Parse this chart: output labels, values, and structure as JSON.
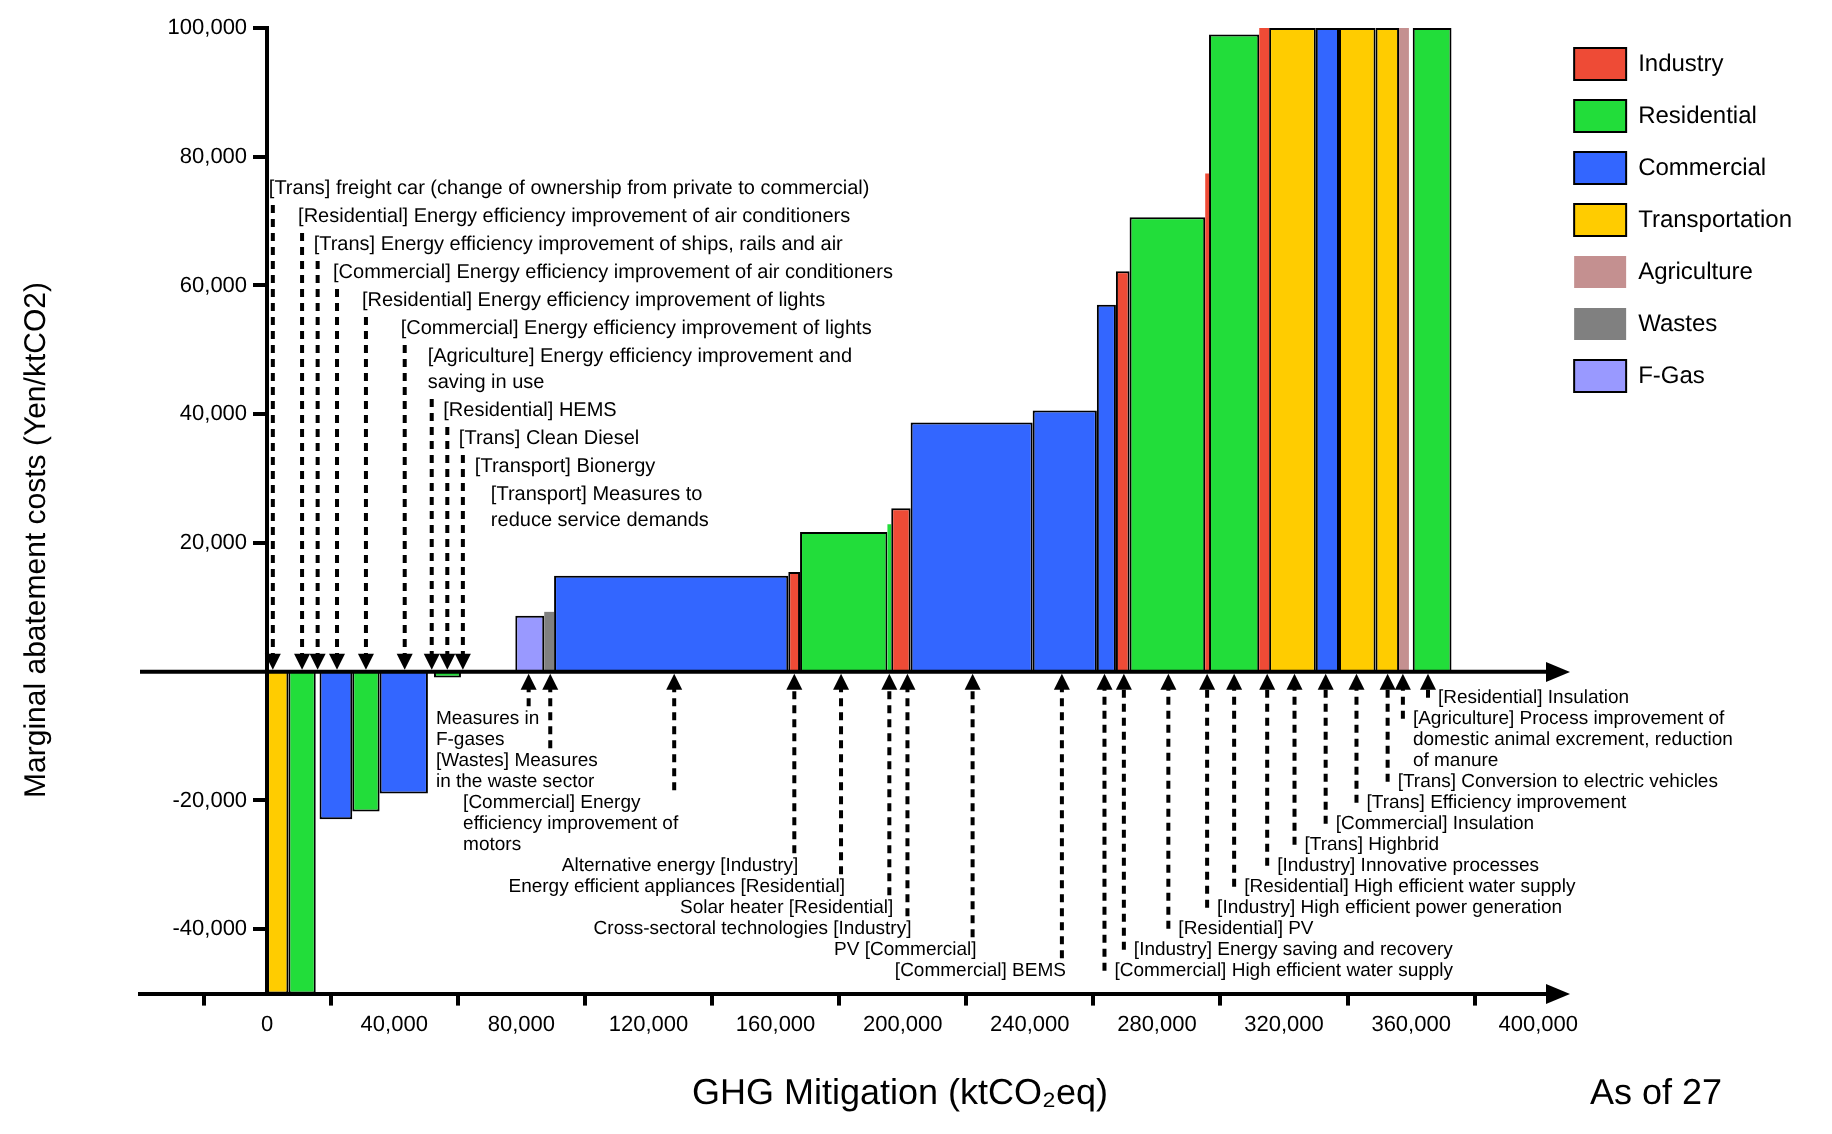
{
  "chart_data": {
    "type": "histogram",
    "xlabel": "GHG Mitigation (ktCO₂eq)",
    "ylabel": "Marginal abatement costs (Yen/ktCO2)",
    "bins": [
      0,
      6700,
      15300,
      16500,
      26800,
      35400,
      50600,
      52500,
      61000,
      78100,
      87200,
      90300,
      164000,
      167700,
      195200,
      196400,
      202500,
      240900,
      261100,
      267100,
      271400,
      295200,
      296400,
      312200,
      315300,
      330000,
      337300,
      348800,
      356200,
      359300,
      360500,
      372700
    ],
    "series": [
      {
        "name": "Industry",
        "color": "#ee4b36",
        "values": [
          null,
          null,
          null,
          null,
          null,
          null,
          null,
          null,
          null,
          null,
          null,
          null,
          15500,
          null,
          null,
          25400,
          null,
          null,
          null,
          62200,
          null,
          77400,
          null,
          100000,
          null,
          null,
          null,
          null,
          null,
          null,
          null
        ]
      },
      {
        "name": "Residential",
        "color": "#22dd3a",
        "values": [
          null,
          -50000,
          null,
          null,
          -21700,
          null,
          null,
          -900,
          null,
          null,
          null,
          null,
          null,
          21700,
          22900,
          null,
          null,
          null,
          null,
          null,
          70600,
          null,
          99000,
          null,
          null,
          null,
          null,
          null,
          null,
          null,
          100000
        ]
      },
      {
        "name": "Commercial",
        "color": "#3366ff",
        "values": [
          null,
          null,
          null,
          -22900,
          null,
          -18900,
          null,
          null,
          null,
          null,
          null,
          14900,
          null,
          null,
          null,
          null,
          38700,
          40600,
          57000,
          null,
          null,
          null,
          null,
          null,
          null,
          100000,
          null,
          null,
          null,
          null,
          null
        ]
      },
      {
        "name": "Transportation",
        "color": "#ffcc00",
        "values": [
          -50000,
          null,
          null,
          null,
          null,
          null,
          null,
          null,
          null,
          null,
          null,
          null,
          null,
          null,
          null,
          null,
          null,
          null,
          null,
          null,
          null,
          null,
          null,
          null,
          100000,
          null,
          100000,
          100000,
          null,
          null,
          null
        ]
      },
      {
        "name": "Agriculture",
        "color": "#c49090",
        "values": [
          null,
          null,
          null,
          null,
          null,
          null,
          null,
          null,
          null,
          null,
          null,
          null,
          null,
          null,
          null,
          null,
          null,
          null,
          null,
          null,
          null,
          null,
          null,
          null,
          null,
          null,
          null,
          null,
          100000,
          null,
          null
        ]
      },
      {
        "name": "Wastes",
        "color": "#808080",
        "values": [
          null,
          null,
          null,
          null,
          null,
          null,
          null,
          null,
          null,
          null,
          9300,
          null,
          null,
          null,
          null,
          null,
          null,
          null,
          null,
          null,
          null,
          null,
          null,
          null,
          null,
          null,
          null,
          null,
          null,
          null,
          null
        ]
      },
      {
        "name": "F-Gas",
        "color": "#9999ff",
        "values": [
          null,
          null,
          null,
          null,
          null,
          null,
          null,
          null,
          null,
          8700,
          null,
          null,
          null,
          null,
          null,
          null,
          null,
          null,
          null,
          null,
          null,
          null,
          null,
          null,
          null,
          null,
          null,
          null,
          null,
          null,
          null
        ]
      }
    ],
    "xlim": [
      -40000,
      405000
    ],
    "xticks": [
      0,
      {
        "value": 40000,
        "label": "40,000"
      },
      {
        "value": 80000,
        "label": "80,000"
      },
      {
        "value": 120000,
        "label": "120,000"
      },
      {
        "value": 160000,
        "label": "160,000"
      },
      {
        "value": 200000,
        "label": "200,000"
      },
      {
        "value": 240000,
        "label": "240,000"
      },
      {
        "value": 280000,
        "label": "280,000"
      },
      {
        "value": 320000,
        "label": "320,000"
      },
      {
        "value": 360000,
        "label": "360,000"
      },
      {
        "value": 400000,
        "label": "400,000"
      }
    ],
    "ylim": [
      -50000,
      100000
    ],
    "yticks": [
      {
        "value": -40000,
        "label": "-40,000"
      },
      {
        "value": -20000,
        "label": "-20,000"
      },
      {
        "value": 20000,
        "label": "20,000"
      },
      {
        "value": 40000,
        "label": "40,000"
      },
      {
        "value": 60000,
        "label": "60,000"
      },
      {
        "value": 80000,
        "label": "80,000"
      },
      {
        "value": 100000,
        "label": "100,000"
      }
    ],
    "legend": "right",
    "annotations": [
      {
        "text": "[Trans] freight car (change of ownership from private to commercial)",
        "x": 1800,
        "y": 0
      },
      {
        "text": "[Residential] Energy efficiency improvement of air conditioners",
        "x": 11000,
        "y": 0
      },
      {
        "text": "[Trans] Energy efficiency improvement of ships, rails and air",
        "x": 15900,
        "y": 0
      },
      {
        "text": "[Commercial] Energy efficiency improvement of air conditioners",
        "x": 22000,
        "y": 0
      },
      {
        "text": "[Residential] Energy efficiency improvement of lights",
        "x": 31100,
        "y": 0
      },
      {
        "text": "[Commercial] Energy efficiency improvement of lights",
        "x": 43300,
        "y": 0
      },
      {
        "text": "[Agriculture] Energy efficiency improvement and\nsaving in use",
        "x": 51800,
        "y": 0
      },
      {
        "text": "[Residential] HEMS",
        "x": 56700,
        "y": 0
      },
      {
        "text": "[Trans] Clean Diesel",
        "x": 61600,
        "y": 0
      },
      "[Transport] Bionergy",
      "[Transport] Measures to\nreduce service demands",
      {
        "text": "Measures in\nF-gases",
        "x": 82300,
        "y": 0
      },
      {
        "text": "[Wastes] Measures\nin the waste sector",
        "x": 89100,
        "y": 0
      },
      {
        "text": "[Commercial] Energy\nefficiency improvement of\nmotors",
        "x": 128100,
        "y": 0
      },
      {
        "text": "Alternative energy [Industry]",
        "x": 165900,
        "y": 0
      },
      {
        "text": "Energy efficient appliances [Residential]",
        "x": 180600,
        "y": 0
      },
      {
        "text": "Solar heater [Residential]",
        "x": 195800,
        "y": 0
      },
      {
        "text": "Cross-sectoral technologies [Industry]",
        "x": 201500,
        "y": 0
      },
      {
        "text": "PV [Commercial]",
        "x": 222000,
        "y": 0
      },
      {
        "text": "[Commercial] BEMS",
        "x": 250100,
        "y": 0
      },
      {
        "text": "[Commercial] High efficient water supply",
        "x": 263500,
        "y": 0
      },
      {
        "text": "[Industry] Energy saving and recovery",
        "x": 269600,
        "y": 0
      },
      {
        "text": "[Residential] PV",
        "x": 283600,
        "y": 0
      },
      {
        "text": "[Industry] High efficient power generation",
        "x": 295800,
        "y": 0
      },
      {
        "text": "[Residential] High efficient water supply",
        "x": 304300,
        "y": 0
      },
      {
        "text": "[Industry] Innovative processes",
        "x": 314700,
        "y": 0
      },
      {
        "text": "[Trans] Highbrid",
        "x": 323300,
        "y": 0
      },
      {
        "text": "[Commercial] Insulation",
        "x": 333100,
        "y": 0
      },
      {
        "text": "[Trans] Efficiency improvement",
        "x": 342800,
        "y": 0
      },
      {
        "text": "[Trans] Conversion to electric vehicles",
        "x": 352600,
        "y": 0
      },
      {
        "text": "[Agriculture] Process improvement of\ndomestic animal excrement, reduction\nof manure",
        "x": 357400,
        "y": 0
      },
      {
        "text": "[Residential] Insulation",
        "x": 365300,
        "y": 0
      },
      "As of 27"
    ]
  }
}
